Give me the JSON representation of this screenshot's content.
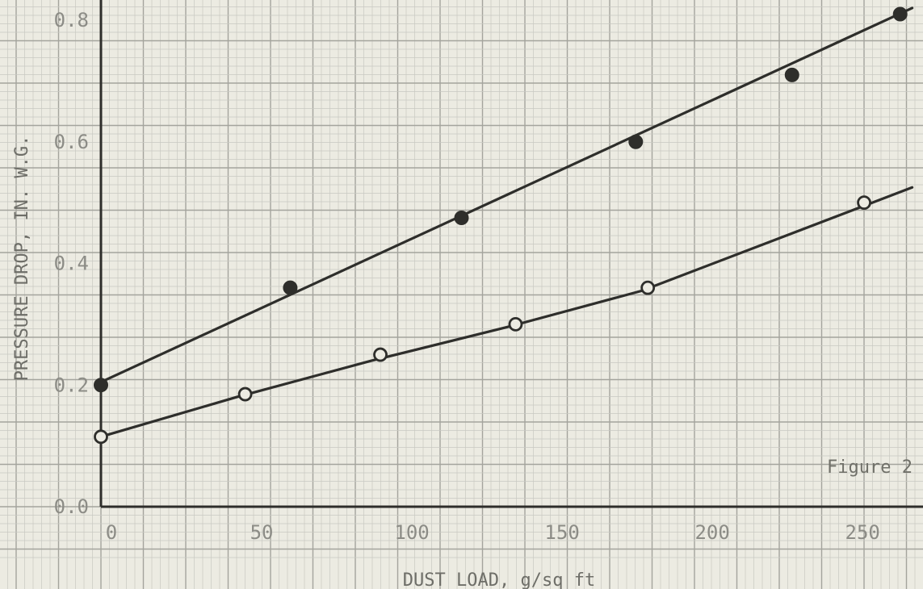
{
  "chart_data": {
    "type": "scatter",
    "xlabel": "DUST LOAD, g/sq ft",
    "ylabel": "PRESSURE DROP, IN. W.G.",
    "annotation": "Figure 2",
    "xlim": [
      0,
      270
    ],
    "ylim": [
      0,
      0.83
    ],
    "x_ticks": [
      "0",
      "50",
      "100",
      "150",
      "200",
      "250"
    ],
    "y_ticks": [
      "0.0",
      "0.2",
      "0.4",
      "0.6",
      "0.8"
    ],
    "grid": true,
    "series": [
      {
        "marker": "filled-circle",
        "x": [
          0,
          63,
          120,
          178,
          230,
          266
        ],
        "y": [
          0.2,
          0.36,
          0.475,
          0.6,
          0.71,
          0.81
        ],
        "fit_line": {
          "x": [
            0,
            270
          ],
          "y": [
            0.205,
            0.82
          ]
        }
      },
      {
        "marker": "open-circle",
        "x": [
          0,
          48,
          93,
          138,
          182,
          254
        ],
        "y": [
          0.115,
          0.185,
          0.25,
          0.3,
          0.36,
          0.5
        ],
        "fit_line": {
          "x": [
            0,
            45,
            90,
            135,
            180,
            270
          ],
          "y": [
            0.115,
            0.18,
            0.24,
            0.295,
            0.355,
            0.525
          ]
        }
      }
    ],
    "colors": {
      "paper": "#ecebe2",
      "minor_grid": "#c9c9c2",
      "major_grid": "#a4a49d",
      "ink": "#2e2e2b"
    }
  }
}
